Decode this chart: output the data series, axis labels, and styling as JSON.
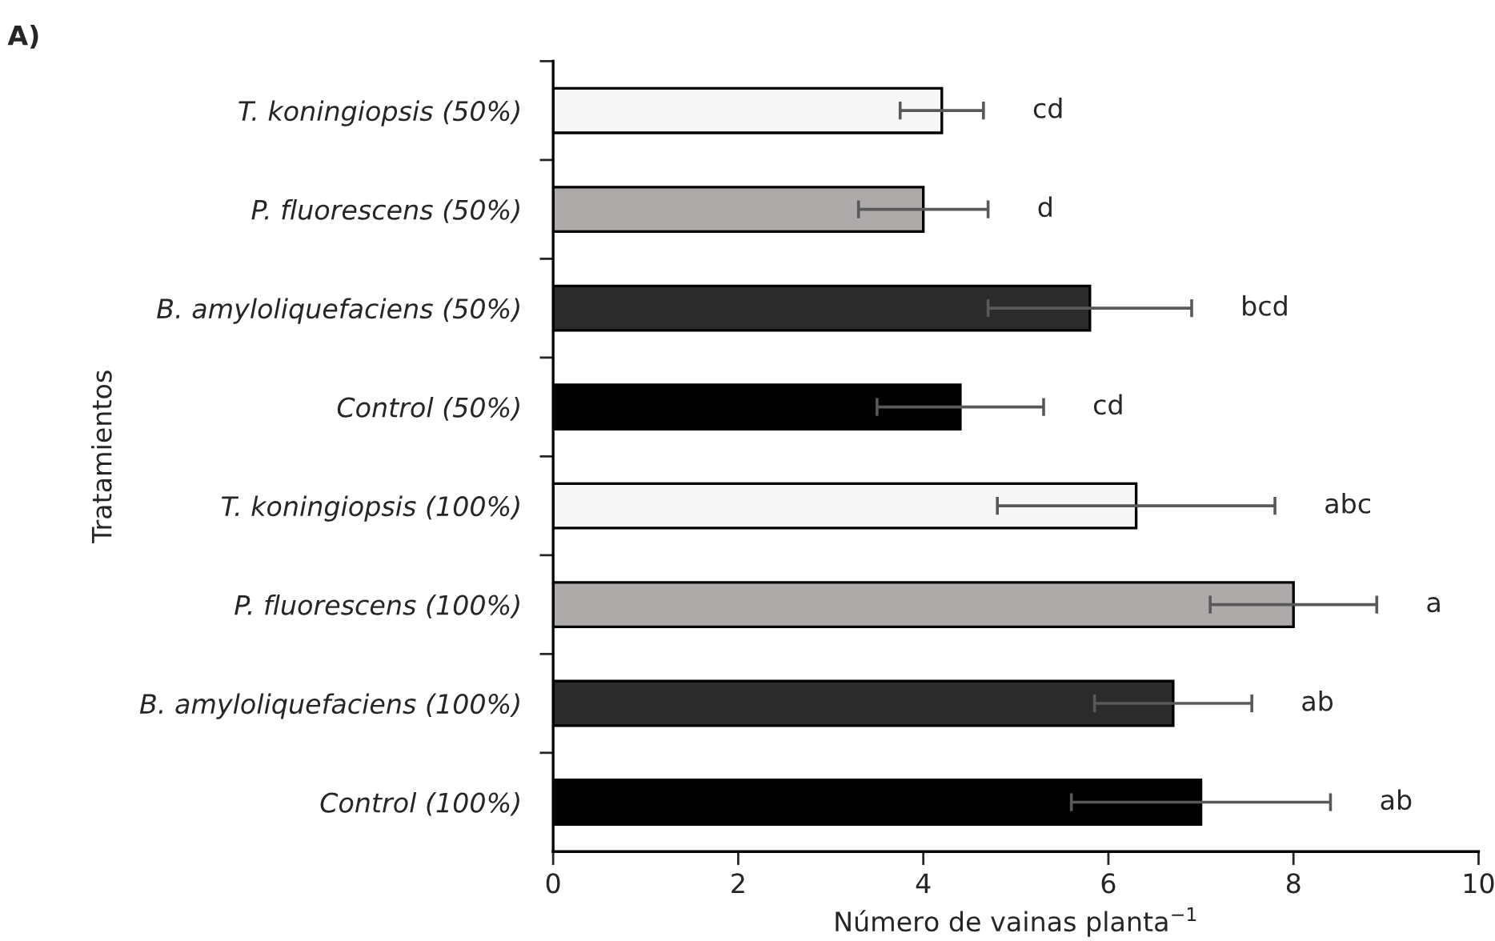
{
  "chart_data": {
    "type": "bar",
    "orientation": "horizontal",
    "categories": [
      "T. koningiopsis (50%)",
      "P. fluorescens (50%)",
      "B. amyloliquefaciens (50%)",
      "Control (50%)",
      "T. koningiopsis (100%)",
      "P. fluorescens (100%)",
      "B. amyloliquefaciens (100%)",
      "Control (100%)"
    ],
    "values": [
      4.2,
      4.0,
      5.8,
      4.4,
      6.3,
      8.0,
      6.7,
      7.0
    ],
    "errors": [
      0.45,
      0.7,
      1.1,
      0.9,
      1.5,
      0.9,
      0.85,
      1.4
    ],
    "colors": [
      "#f7f7f7",
      "#aeaaaa",
      "#2b2b2b",
      "#000000",
      "#f7f7f7",
      "#aeaaaa",
      "#2b2b2b",
      "#000000"
    ],
    "xlabel": "Número de vainas planta$^{−1}$",
    "ylabel": "Tratamientos",
    "xlim": [
      0,
      10
    ],
    "xticks": [
      0,
      2,
      4,
      6,
      8,
      10
    ],
    "grid": false,
    "legend": false,
    "annotations": [
      "A)",
      "cd",
      "d",
      "bcd",
      "cd",
      "abc",
      "a",
      "ab",
      "ab"
    ]
  }
}
